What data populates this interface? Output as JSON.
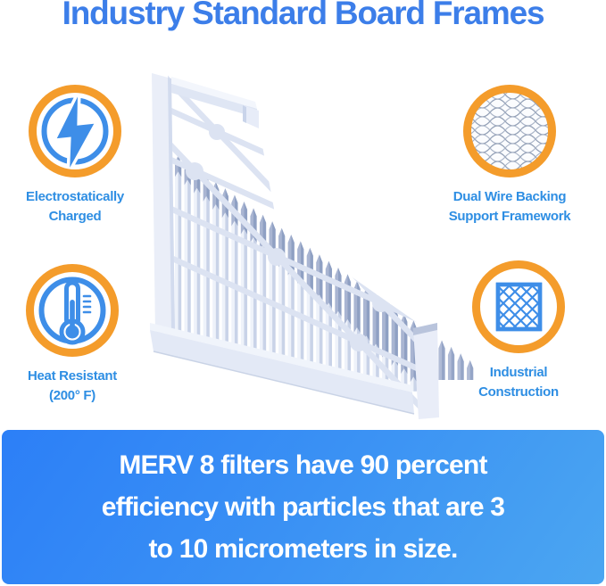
{
  "title": {
    "text": "Industry Standard Board Frames",
    "color": "#3c7ee9"
  },
  "features": [
    {
      "id": "electrostatically-charged",
      "icon": "lightning-bolt-icon",
      "label_lines": [
        "Electrostatically",
        "Charged"
      ]
    },
    {
      "id": "dual-wire-backing",
      "icon": "wire-mesh-icon",
      "label_lines": [
        "Dual Wire Backing",
        "Support Framework"
      ]
    },
    {
      "id": "heat-resistant",
      "icon": "thermometer-icon",
      "label_lines": [
        "Heat Resistant",
        "(200° F)"
      ]
    },
    {
      "id": "industrial-construction",
      "icon": "diamond-lattice-icon",
      "label_lines": [
        "Industrial",
        "Construction"
      ]
    }
  ],
  "illustration": {
    "name": "pleated-air-filter-with-board-frame"
  },
  "banner": {
    "lines": [
      "MERV 8 filters have 90 percent",
      "efficiency with particles that are 3",
      "to 10 micrometers in size."
    ],
    "text_color": "#ffffff",
    "bg_gradient_from": "#2c7ff7",
    "bg_gradient_to": "#4ba6f1"
  },
  "colors": {
    "accent_orange": "#f49c2b",
    "icon_blue": "#3e8ee8",
    "label_blue": "#2e8ee3",
    "title_blue": "#3c7ee9",
    "background": "#ffffff"
  }
}
